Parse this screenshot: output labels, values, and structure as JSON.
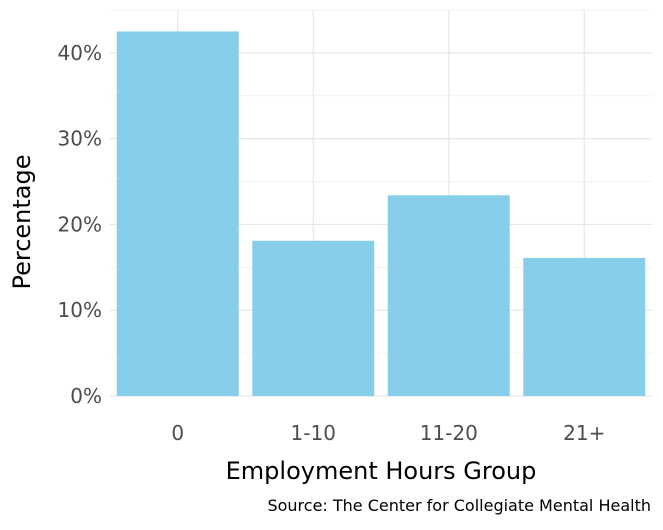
{
  "chart_data": {
    "type": "bar",
    "categories": [
      "0",
      "1-10",
      "11-20",
      "21+"
    ],
    "values": [
      42.5,
      18.1,
      23.4,
      16.1
    ],
    "xlabel": "Employment Hours Group",
    "ylabel": "Percentage",
    "caption": "Source: The Center for Collegiate Mental Health",
    "ylim": [
      0,
      45
    ],
    "yticks": [
      0,
      10,
      20,
      30,
      40
    ],
    "ytick_labels": [
      "0%",
      "10%",
      "20%",
      "30%",
      "40%"
    ],
    "grid": true,
    "legend": "none",
    "bar_color": "#87CEEB"
  }
}
